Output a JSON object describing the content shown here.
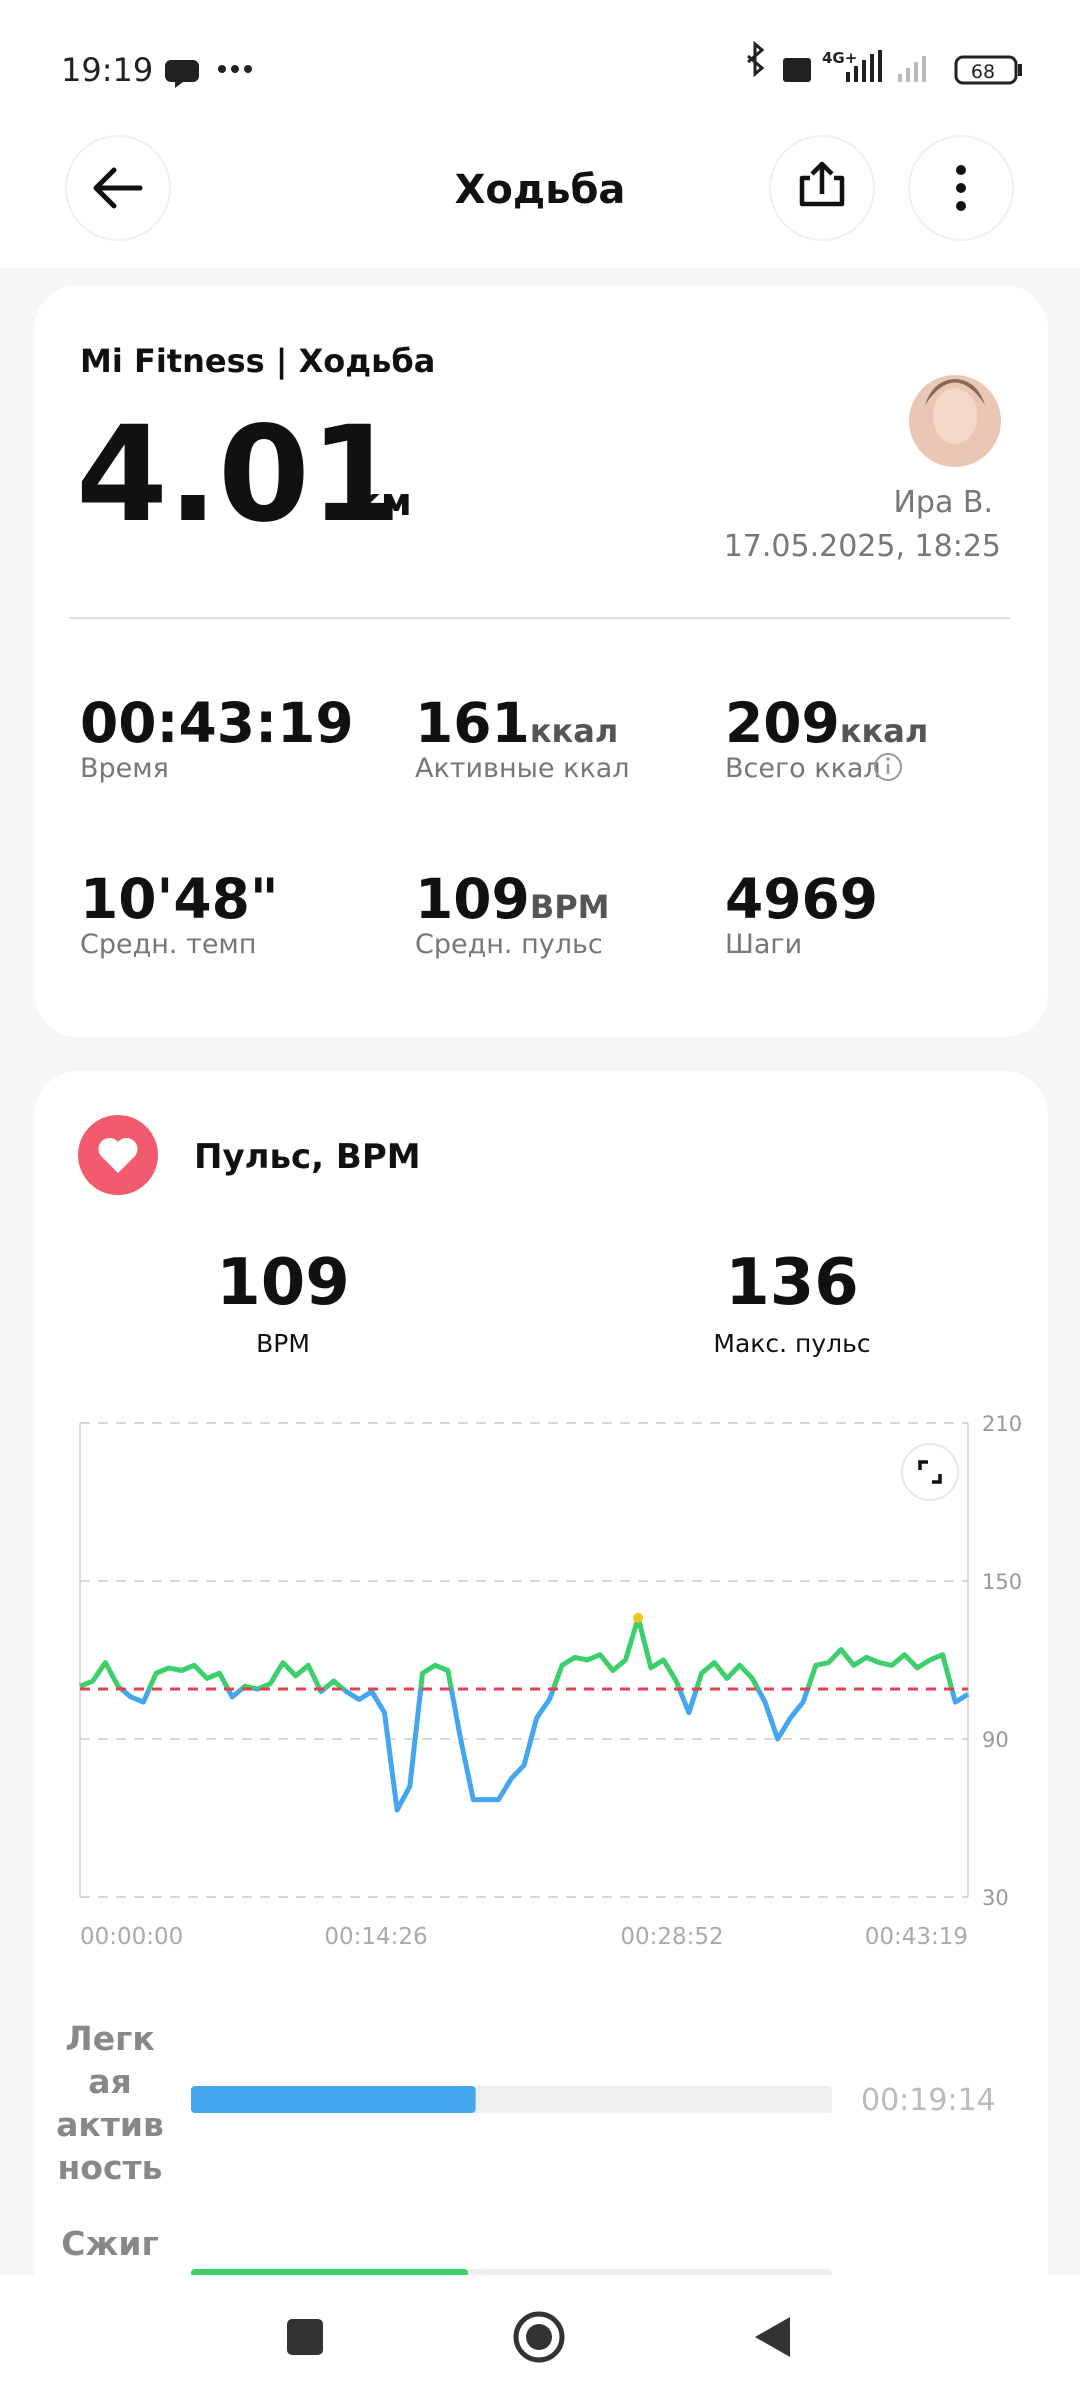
{
  "status_bar": {
    "time": "19:19",
    "network": "4G+",
    "battery": "68"
  },
  "header": {
    "title": "Ходьба"
  },
  "summary": {
    "source": "Mi Fitness | Ходьба",
    "distance": {
      "value": "4.01",
      "unit": "км"
    },
    "user": "Ира В.",
    "datetime": "17.05.2025, 18:25",
    "stats": [
      {
        "value": "00:43:19",
        "label": "Время"
      },
      {
        "value": "161",
        "unit": "ккал",
        "label": "Активные ккал"
      },
      {
        "value": "209",
        "unit": "ккал",
        "label": "Всего ккал"
      },
      {
        "value": "10'48\"",
        "label": "Средн. темп"
      },
      {
        "value": "109",
        "unit": "BPM",
        "label": "Средн. пульс"
      },
      {
        "value": "4969",
        "label": "Шаги"
      }
    ]
  },
  "heart": {
    "title": "Пульс, BPM",
    "stats": [
      {
        "value": 109,
        "label": "BPM"
      },
      {
        "value": 136,
        "label": "Макс. пульс"
      }
    ],
    "chart_data": {
      "type": "line",
      "colors": {
        "above": "#3ccf6c",
        "below": "#45a6f0",
        "average": "#e5404e",
        "max": "#f5c518"
      },
      "values": [
        110,
        112,
        119,
        110,
        106,
        104,
        115,
        117,
        116,
        118,
        113,
        115,
        106,
        110,
        109,
        111,
        119,
        114,
        118,
        108,
        112,
        108,
        105,
        108,
        100,
        63,
        72,
        115,
        118,
        116,
        90,
        67,
        67,
        67,
        75,
        80,
        98,
        105,
        118,
        121,
        120,
        122,
        116,
        120,
        136,
        117,
        120,
        112,
        100,
        115,
        119,
        113,
        118,
        113,
        104,
        90,
        98,
        104,
        118,
        119,
        124,
        118,
        121,
        119,
        118,
        122,
        117,
        120,
        122,
        104,
        107
      ],
      "ylim": [
        30,
        210
      ],
      "yticks": [
        30,
        90,
        150,
        210
      ],
      "xticks": [
        "00:00:00",
        "00:14:26",
        "00:28:52",
        "00:43:19"
      ],
      "grid": true
    }
  },
  "zones": [
    {
      "label_lines": [
        "Легк",
        "ая",
        "актив",
        "ность"
      ],
      "duration": "00:19:14",
      "color": "#45a6f0"
    },
    {
      "label_lines": [
        "Сжиг"
      ]
    }
  ]
}
